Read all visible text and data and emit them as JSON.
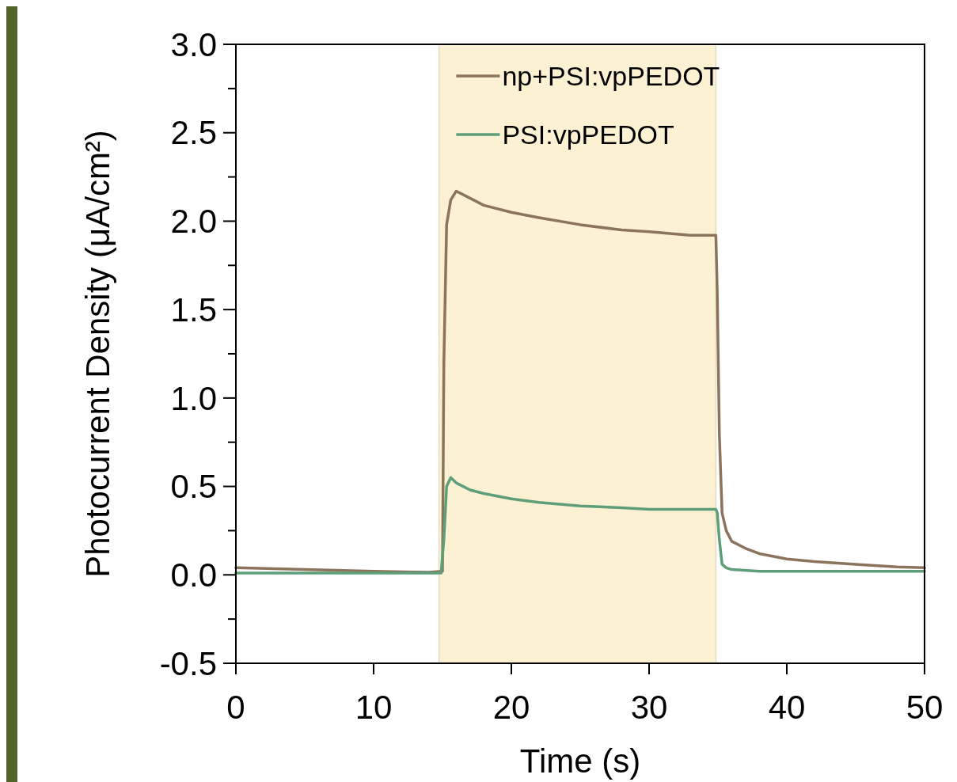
{
  "chart_data": {
    "type": "line",
    "xlabel": "Time (s)",
    "ylabel": "Photocurrent Density (μA/cm²)",
    "xlim": [
      0,
      50
    ],
    "xticks": [
      0,
      10,
      20,
      30,
      40,
      50
    ],
    "ylim": [
      -0.5,
      3.0
    ],
    "yticks": [
      {
        "value": -0.5,
        "label": "-0.5"
      },
      {
        "value": -0.25,
        "label": null
      },
      {
        "value": 0,
        "label": "0.0"
      },
      {
        "value": 0.25,
        "label": null
      },
      {
        "value": 0.5,
        "label": "0.5"
      },
      {
        "value": 0.75,
        "label": null
      },
      {
        "value": 1.0,
        "label": "1.0"
      },
      {
        "value": 1.25,
        "label": null
      },
      {
        "value": 1.5,
        "label": "1.5"
      },
      {
        "value": 1.75,
        "label": null
      },
      {
        "value": 2.0,
        "label": "2.0"
      },
      {
        "value": 2.25,
        "label": null
      },
      {
        "value": 2.5,
        "label": "2.5"
      },
      {
        "value": 2.75,
        "label": null
      },
      {
        "value": 3.0,
        "label": "3.0"
      }
    ],
    "bands": [
      {
        "axis": "x",
        "from": 14.75,
        "to": 34.85,
        "color": "#fdf1d4"
      }
    ],
    "legend": "top",
    "grid": false,
    "marker": "none",
    "line_style": "solid",
    "series": [
      {
        "name": "np+PSI:vpPEDOT",
        "color": "#8b735c",
        "x": [
          0,
          5,
          10,
          14,
          15.0,
          15.1,
          15.3,
          15.6,
          16,
          17,
          18,
          20,
          22,
          25,
          28,
          30,
          33,
          34.85,
          34.95,
          35.1,
          35.3,
          35.6,
          36,
          37,
          38,
          40,
          42,
          45,
          48,
          50
        ],
        "values": [
          0.04,
          0.03,
          0.02,
          0.015,
          0.02,
          1.2,
          1.98,
          2.12,
          2.17,
          2.13,
          2.09,
          2.05,
          2.02,
          1.98,
          1.95,
          1.94,
          1.92,
          1.92,
          1.6,
          0.8,
          0.35,
          0.25,
          0.19,
          0.15,
          0.12,
          0.09,
          0.075,
          0.06,
          0.045,
          0.04
        ]
      },
      {
        "name": "PSI:vpPEDOT",
        "color": "#5e9e78",
        "x": [
          0,
          5,
          10,
          14,
          14.9,
          15.1,
          15.3,
          15.6,
          16,
          17,
          18,
          20,
          22,
          25,
          28,
          30,
          33,
          34.85,
          34.95,
          35.1,
          35.3,
          35.6,
          36,
          38,
          40,
          45,
          50
        ],
        "values": [
          0.01,
          0.01,
          0.01,
          0.01,
          0.01,
          0.2,
          0.5,
          0.55,
          0.52,
          0.48,
          0.46,
          0.43,
          0.41,
          0.39,
          0.38,
          0.37,
          0.37,
          0.37,
          0.35,
          0.2,
          0.06,
          0.04,
          0.03,
          0.02,
          0.02,
          0.02,
          0.02
        ]
      }
    ]
  }
}
